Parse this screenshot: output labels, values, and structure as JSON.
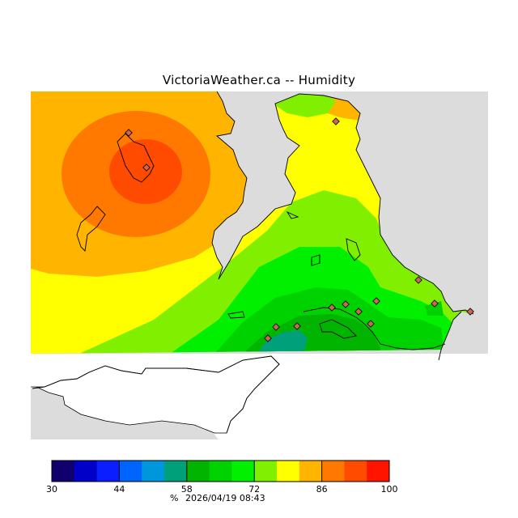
{
  "title": "VictoriaWeather.ca -- Humidity",
  "colorbar": {
    "min": 30,
    "max": 100,
    "tick_labels": [
      "30",
      "44",
      "58",
      "72",
      "86",
      "100"
    ],
    "unit": "%",
    "colors": [
      "#10006e",
      "#0000c8",
      "#0a1eff",
      "#0064ff",
      "#0096dc",
      "#00a07a",
      "#00b400",
      "#00d200",
      "#00f000",
      "#80f000",
      "#ffff00",
      "#ffb400",
      "#ff7800",
      "#ff4b00",
      "#ff1400"
    ]
  },
  "timestamp": "2026/04/19 08:43",
  "map": {
    "no_data_color": "#dcdcdc",
    "land_color": "#ffffff",
    "station_marker_color": "#cc6650"
  }
}
